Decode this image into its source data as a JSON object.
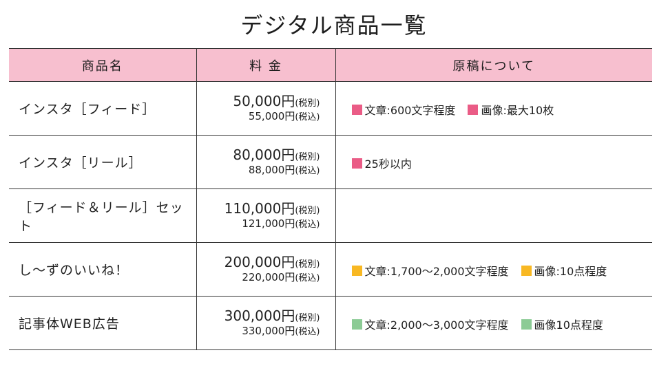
{
  "title": "デジタル商品一覧",
  "headers": [
    "商品名",
    "料 金",
    "原稿について"
  ],
  "colors": {
    "header_bg": "#f7bfcf",
    "pink": "#ea5c86",
    "orange": "#f8b823",
    "green": "#8ccb95"
  },
  "rows": [
    {
      "name": "インスタ［フィード］",
      "price_ex": "50,000円",
      "tax_ex": "(税別)",
      "price_in": "55,000円",
      "tax_in": "(税込)",
      "notes": [
        {
          "color": "#ea5c86",
          "text": "文章:600文字程度"
        },
        {
          "color": "#ea5c86",
          "text": "画像:最大10枚"
        }
      ]
    },
    {
      "name": "インスタ［リール］",
      "price_ex": "80,000円",
      "tax_ex": "(税別)",
      "price_in": "88,000円",
      "tax_in": "(税込)",
      "notes": [
        {
          "color": "#ea5c86",
          "text": "25秒以内"
        }
      ]
    },
    {
      "name": "［フィード＆リール］セット",
      "price_ex": "110,000円",
      "tax_ex": "(税別)",
      "price_in": "121,000円",
      "tax_in": "(税込)",
      "notes": []
    },
    {
      "name": "し〜ずのいいね！",
      "price_ex": "200,000円",
      "tax_ex": "(税別)",
      "price_in": "220,000円",
      "tax_in": "(税込)",
      "notes": [
        {
          "color": "#f8b823",
          "text": "文章:1,700〜2,000文字程度"
        },
        {
          "color": "#f8b823",
          "text": "画像:10点程度"
        }
      ]
    },
    {
      "name": "記事体WEB広告",
      "price_ex": "300,000円",
      "tax_ex": "(税別)",
      "price_in": "330,000円",
      "tax_in": "(税込)",
      "notes": [
        {
          "color": "#8ccb95",
          "text": "文章:2,000〜3,000文字程度"
        },
        {
          "color": "#8ccb95",
          "text": "画像10点程度"
        }
      ]
    }
  ]
}
